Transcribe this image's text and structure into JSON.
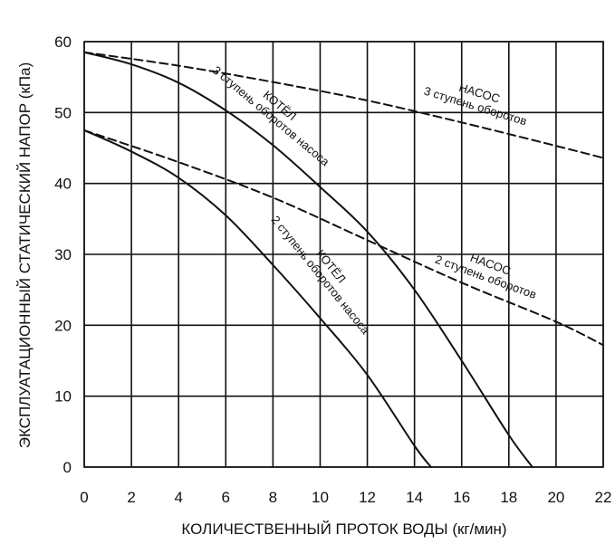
{
  "chart_data": {
    "type": "line",
    "title": "",
    "xlabel": "КОЛИЧЕСТВЕННЫЙ ПРОТОК ВОДЫ (кг/мин)",
    "ylabel": "ЭКСПЛУАТАЦИОННЫЙ СТАТИЧЕСКИЙ НАПОР (кПа)",
    "xlim": [
      0,
      22
    ],
    "ylim": [
      0,
      60
    ],
    "x_ticks": [
      0,
      2,
      4,
      6,
      8,
      10,
      12,
      14,
      16,
      18,
      20,
      22
    ],
    "y_ticks": [
      0,
      10,
      20,
      30,
      40,
      50,
      60
    ],
    "grid": true,
    "legend": "none",
    "series": [
      {
        "id": "pump-3",
        "style": "dashed",
        "label_lines": [
          "НАСОС",
          "3 ступень оборотов"
        ],
        "points": [
          [
            0,
            58.5
          ],
          [
            4,
            56.6
          ],
          [
            8,
            54.3
          ],
          [
            12,
            51.7
          ],
          [
            16,
            48.6
          ],
          [
            20,
            45.3
          ],
          [
            22,
            43.6
          ]
        ]
      },
      {
        "id": "boiler-3",
        "style": "solid",
        "label_lines": [
          "КОТЁЛ",
          "3 ступень оборотов насоса"
        ],
        "points": [
          [
            0,
            58.5
          ],
          [
            2,
            56.8
          ],
          [
            4,
            54.2
          ],
          [
            6,
            50.3
          ],
          [
            8,
            45.4
          ],
          [
            10,
            39.5
          ],
          [
            12,
            33.2
          ],
          [
            14,
            25.0
          ],
          [
            16,
            15.0
          ],
          [
            18,
            4.5
          ],
          [
            19,
            0
          ]
        ]
      },
      {
        "id": "pump-2",
        "style": "dashed",
        "label_lines": [
          "НАСОС",
          "2 ступень оборотов"
        ],
        "points": [
          [
            0,
            47.5
          ],
          [
            4,
            43.0
          ],
          [
            8,
            38.0
          ],
          [
            12,
            32.0
          ],
          [
            16,
            26.0
          ],
          [
            20,
            20.5
          ],
          [
            22,
            17.2
          ]
        ]
      },
      {
        "id": "boiler-2",
        "style": "solid",
        "label_lines": [
          "КОТЁЛ",
          "2 ступень оборотов насоса"
        ],
        "points": [
          [
            0,
            47.5
          ],
          [
            2,
            44.5
          ],
          [
            4,
            40.8
          ],
          [
            6,
            35.5
          ],
          [
            8,
            28.5
          ],
          [
            10,
            21.0
          ],
          [
            12,
            13.0
          ],
          [
            14,
            3.0
          ],
          [
            14.7,
            0
          ]
        ]
      }
    ]
  }
}
